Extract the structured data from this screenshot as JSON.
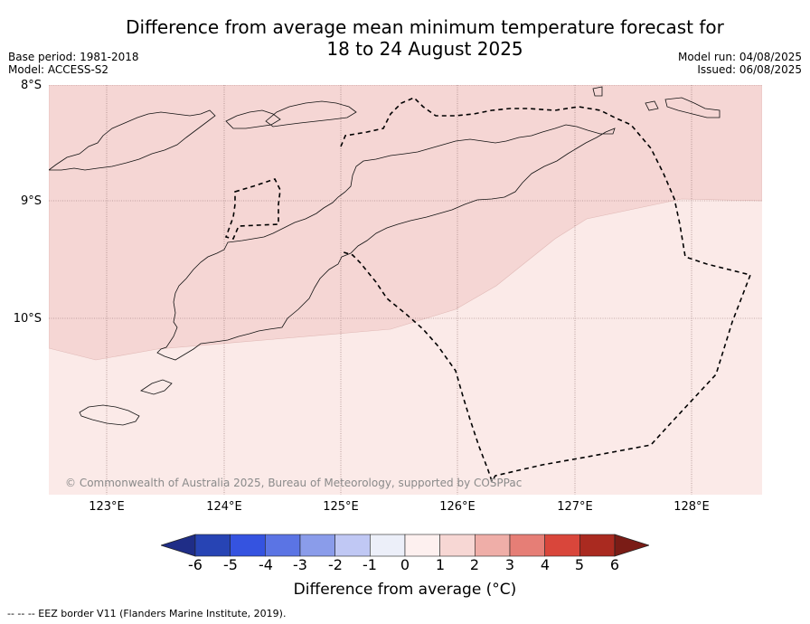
{
  "title": {
    "line1": "Difference from average mean minimum temperature forecast for",
    "line2": "18 to 24 August 2025"
  },
  "meta": {
    "base_period": "Base period: 1981-2018",
    "model": "Model: ACCESS-S2",
    "model_run": "Model run: 04/08/2025",
    "issued": "Issued: 06/08/2025"
  },
  "map": {
    "lat_labels": [
      "8°S",
      "9°S",
      "10°S"
    ],
    "lon_labels": [
      "123°E",
      "124°E",
      "125°E",
      "126°E",
      "127°E",
      "128°E"
    ],
    "copyright": "© Commonwealth of Australia 2025, Bureau of Meteorology, supported by COSPPac",
    "ocean_color": "#fbeae8",
    "anomaly_color": "#f5d6d4"
  },
  "colorbar": {
    "ticks": [
      "-6",
      "-5",
      "-4",
      "-3",
      "-2",
      "-1",
      "0",
      "1",
      "2",
      "3",
      "4",
      "5",
      "6"
    ],
    "colors": [
      "#1f2d87",
      "#2744b4",
      "#3553e0",
      "#5b74e4",
      "#8a9cea",
      "#c0c8f4",
      "#eceff9",
      "#fdf0ef",
      "#f7d7d4",
      "#efaea8",
      "#e67e76",
      "#d9463b",
      "#aa2a20",
      "#7a1c16"
    ],
    "label": "Difference from average (°C)"
  },
  "footnote": "-- -- -- EEZ border V11 (Flanders Marine Institute, 2019)."
}
